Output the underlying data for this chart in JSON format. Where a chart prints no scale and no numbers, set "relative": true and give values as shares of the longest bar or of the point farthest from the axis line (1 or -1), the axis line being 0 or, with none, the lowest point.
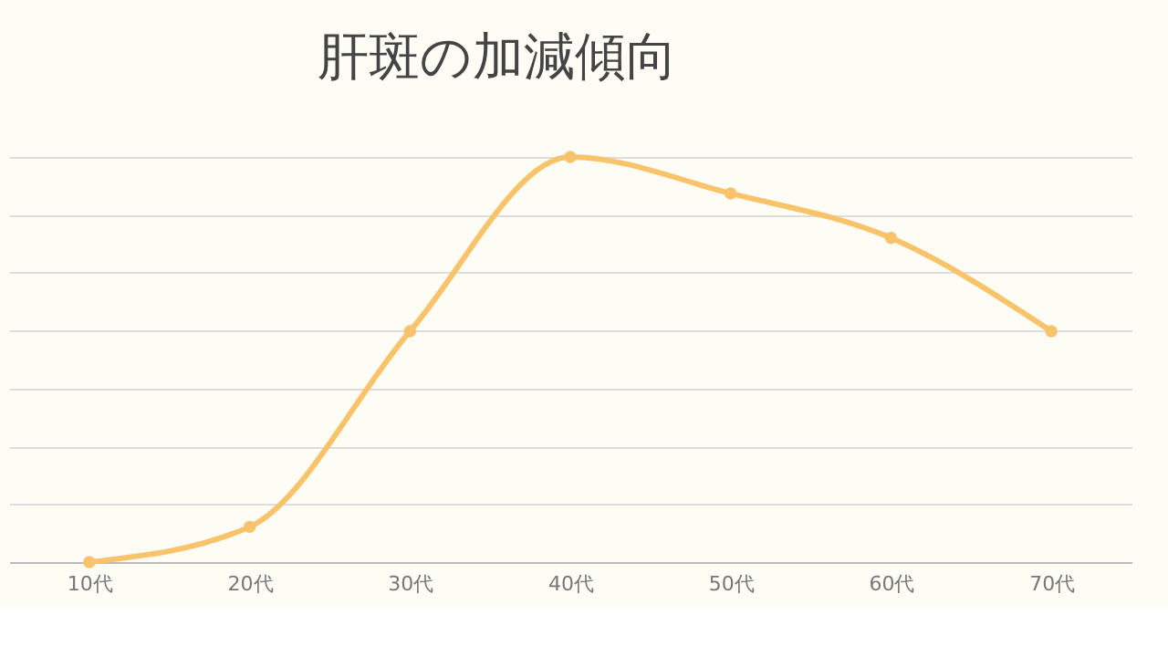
{
  "chart_data": {
    "type": "line",
    "title": "肝斑の加減傾向",
    "relative": true,
    "categories": [
      "10代",
      "20代",
      "30代",
      "40代",
      "50代",
      "60代",
      "70代"
    ],
    "series": [
      {
        "color": "#f8c36a",
        "values": [
          0,
          0.087,
          0.57,
          1,
          0.91,
          0.8,
          0.57
        ]
      }
    ],
    "marker": "circle",
    "line_style": "solid",
    "grid": "y"
  }
}
